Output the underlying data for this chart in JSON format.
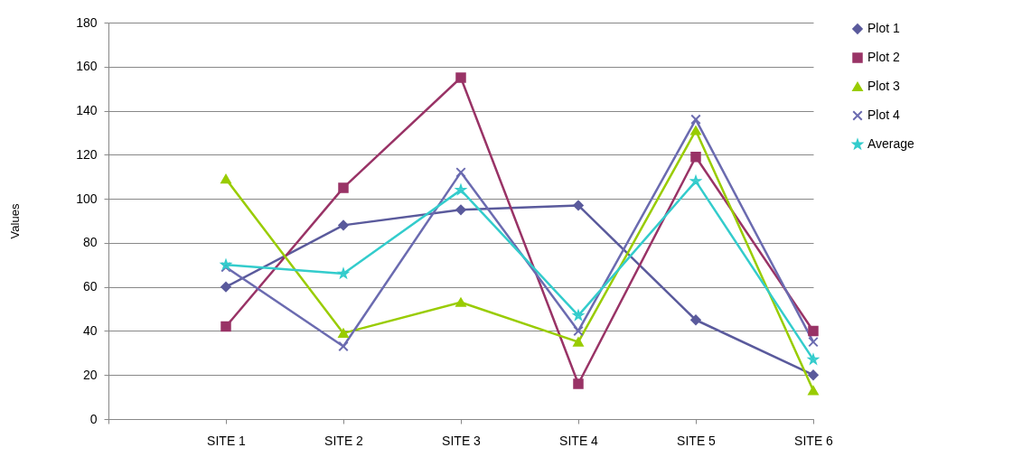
{
  "chart_data": {
    "type": "line",
    "ylabel": "Values",
    "categories": [
      null,
      "SITE 1",
      "SITE 2",
      "SITE 3",
      "SITE 4",
      "SITE 5",
      "SITE 6"
    ],
    "ylim": [
      0,
      180
    ],
    "yticks": [
      0,
      20,
      40,
      60,
      80,
      100,
      120,
      140,
      160,
      180
    ],
    "grid": "y",
    "legend": "right",
    "series": [
      {
        "name": "Plot 1",
        "color": "#5a5a9c",
        "marker": "diamond",
        "values": [
          null,
          60,
          88,
          95,
          97,
          45,
          20
        ]
      },
      {
        "name": "Plot 2",
        "color": "#993366",
        "marker": "square",
        "values": [
          null,
          42,
          105,
          155,
          16,
          119,
          40
        ]
      },
      {
        "name": "Plot 3",
        "color": "#99cc00",
        "marker": "triangle",
        "values": [
          null,
          109,
          39,
          53,
          35,
          131,
          13
        ]
      },
      {
        "name": "Plot 4",
        "color": "#6b6bb0",
        "marker": "cross",
        "values": [
          null,
          69,
          33,
          112,
          40,
          136,
          35
        ]
      },
      {
        "name": "Average",
        "color": "#33cccc",
        "marker": "star",
        "values": [
          null,
          70,
          66,
          104,
          47,
          108,
          27
        ]
      }
    ]
  }
}
